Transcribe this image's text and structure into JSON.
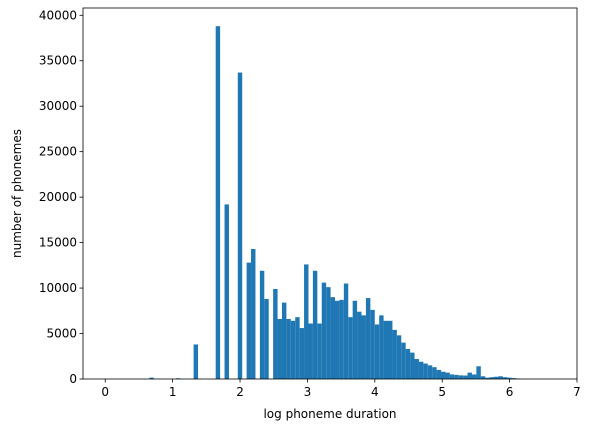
{
  "chart_data": {
    "type": "bar",
    "title": "",
    "xlabel": "log phoneme duration",
    "ylabel": "number of phonemes",
    "xlim": [
      -0.33,
      7.0
    ],
    "ylim": [
      0,
      40800
    ],
    "xticks": [
      0,
      1,
      2,
      3,
      4,
      5,
      6,
      7
    ],
    "yticks": [
      0,
      5000,
      10000,
      15000,
      20000,
      25000,
      30000,
      35000,
      40000
    ],
    "color": "#1f77b4",
    "grid": false,
    "bin_start": 0.0,
    "bin_width": 0.06556,
    "values": [
      0,
      0,
      0,
      0,
      0,
      0,
      0,
      0,
      0,
      0,
      150,
      0,
      0,
      0,
      0,
      0,
      80,
      0,
      0,
      0,
      3800,
      0,
      0,
      0,
      0,
      38800,
      0,
      19200,
      0,
      0,
      33700,
      0,
      12800,
      14300,
      0,
      11900,
      8800,
      0,
      9900,
      6600,
      8400,
      6600,
      6400,
      6800,
      5600,
      12600,
      6100,
      11900,
      6100,
      10600,
      10100,
      9000,
      8600,
      8700,
      10500,
      6800,
      8600,
      7400,
      7000,
      8900,
      7600,
      6000,
      7000,
      6400,
      6400,
      5400,
      4800,
      4000,
      3300,
      2900,
      2200,
      1900,
      1700,
      1500,
      1300,
      1000,
      800,
      700,
      500,
      450,
      400,
      380,
      700,
      500,
      1400,
      300,
      150,
      200,
      250,
      300,
      200,
      150,
      100,
      50,
      0,
      0,
      0,
      0,
      0,
      0
    ]
  }
}
